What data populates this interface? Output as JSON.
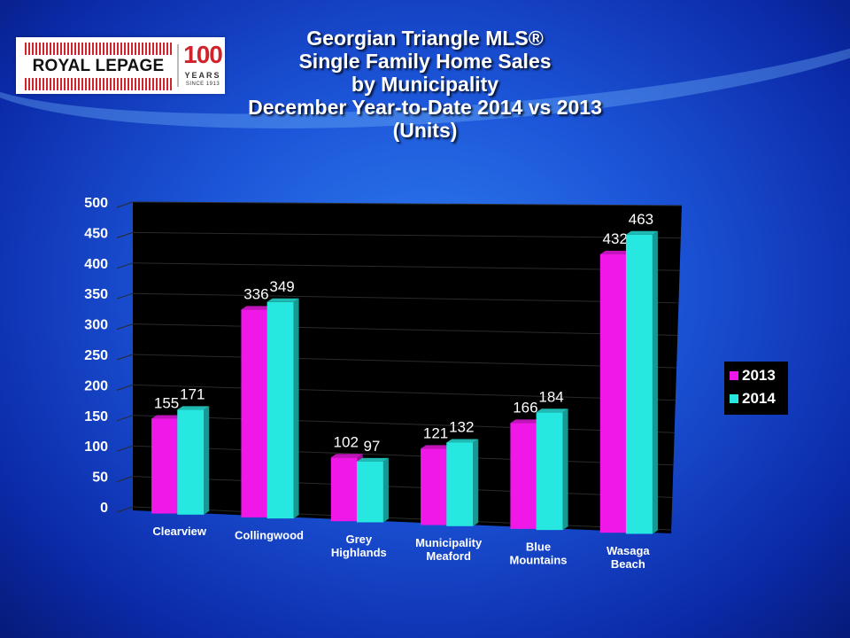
{
  "logo": {
    "brand": "ROYAL LEPAGE",
    "number": "100",
    "years": "YEARS",
    "since": "SINCE 1913"
  },
  "colors": {
    "series_2013": "#f018e8",
    "series_2014": "#27e8e0",
    "plot_background": "#000000"
  },
  "chart_data": {
    "type": "bar",
    "title_lines": [
      "Georgian Triangle MLS®",
      "Single Family Home Sales",
      "by Municipality",
      "December Year-to-Date 2014 vs 2013",
      "(Units)"
    ],
    "categories": [
      [
        "Clearview"
      ],
      [
        "Collingwood"
      ],
      [
        "Grey",
        "Highlands"
      ],
      [
        "Municipality",
        "Meaford"
      ],
      [
        "Blue",
        "Mountains"
      ],
      [
        "Wasaga",
        "Beach"
      ]
    ],
    "series": [
      {
        "name": "2013",
        "values": [
          155,
          336,
          102,
          121,
          166,
          432
        ]
      },
      {
        "name": "2014",
        "values": [
          171,
          349,
          97,
          132,
          184,
          463
        ]
      }
    ],
    "y_ticks": [
      "0",
      "50",
      "100",
      "150",
      "200",
      "250",
      "300",
      "350",
      "400",
      "450",
      "500"
    ],
    "ylim": [
      0,
      500
    ],
    "grid": true,
    "legend_position": "right",
    "style": "3d clustered column"
  }
}
